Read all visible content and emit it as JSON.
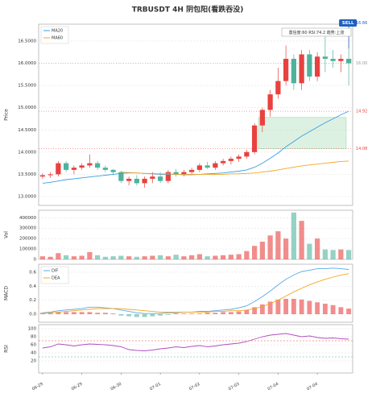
{
  "chart_data": [
    {
      "type": "candlestick",
      "title": "TRBUSDT  4H  阴包阳(看跌吞没)",
      "ylabel": "Price",
      "categories": [
        "06-29",
        null,
        null,
        null,
        null,
        "06-29",
        null,
        null,
        null,
        null,
        "06-30",
        null,
        null,
        null,
        null,
        "07-01",
        null,
        null,
        null,
        null,
        "07-02",
        null,
        null,
        null,
        null,
        "07-03",
        null,
        null,
        null,
        null,
        "07-04",
        null,
        null,
        null,
        null,
        "07-04",
        null,
        null,
        null,
        null
      ],
      "open": [
        13.45,
        13.48,
        13.5,
        13.75,
        13.6,
        13.65,
        13.7,
        13.75,
        13.65,
        13.6,
        13.55,
        13.35,
        13.4,
        13.3,
        13.4,
        13.45,
        13.35,
        13.55,
        13.5,
        13.55,
        13.6,
        13.7,
        13.65,
        13.75,
        13.8,
        13.85,
        13.9,
        14.0,
        14.6,
        14.95,
        15.3,
        15.6,
        16.1,
        15.55,
        16.2,
        15.7,
        16.15,
        16.1,
        16.05,
        16.1
      ],
      "high": [
        13.52,
        13.55,
        13.8,
        13.8,
        13.7,
        13.75,
        13.95,
        13.8,
        13.7,
        13.62,
        13.58,
        13.45,
        13.48,
        13.45,
        13.55,
        13.55,
        13.6,
        13.62,
        13.6,
        13.65,
        13.75,
        13.78,
        13.8,
        13.85,
        13.9,
        13.95,
        14.05,
        14.65,
        15.0,
        15.4,
        15.9,
        16.4,
        16.2,
        16.3,
        16.3,
        16.25,
        16.6,
        16.3,
        16.2,
        16.35
      ],
      "low": [
        13.4,
        13.42,
        13.45,
        13.55,
        13.5,
        13.6,
        13.65,
        13.6,
        13.55,
        13.48,
        13.3,
        13.25,
        13.25,
        13.2,
        13.3,
        13.3,
        13.3,
        13.45,
        13.45,
        13.5,
        13.55,
        13.62,
        13.6,
        13.7,
        13.72,
        13.78,
        13.85,
        13.95,
        14.45,
        14.8,
        15.2,
        15.5,
        15.4,
        15.4,
        15.6,
        15.6,
        15.8,
        15.9,
        15.8,
        15.5
      ],
      "close": [
        13.48,
        13.5,
        13.75,
        13.6,
        13.65,
        13.7,
        13.75,
        13.65,
        13.6,
        13.55,
        13.35,
        13.4,
        13.3,
        13.4,
        13.45,
        13.35,
        13.55,
        13.5,
        13.55,
        13.6,
        13.7,
        13.65,
        13.75,
        13.8,
        13.85,
        13.9,
        14.0,
        14.6,
        14.95,
        15.3,
        15.6,
        16.1,
        15.55,
        16.2,
        15.7,
        16.15,
        16.1,
        16.05,
        16.1,
        16.0
      ],
      "up_color": "#e8413f",
      "down_color": "#4fb39c",
      "series": [
        {
          "name": "MA20",
          "color": "#3b9de0",
          "values": [
            13.3,
            13.32,
            13.35,
            13.38,
            13.4,
            13.42,
            13.44,
            13.46,
            13.48,
            13.5,
            13.52,
            13.53,
            13.53,
            13.52,
            13.51,
            13.5,
            13.5,
            13.5,
            13.49,
            13.49,
            13.5,
            13.51,
            13.52,
            13.53,
            13.55,
            13.57,
            13.6,
            13.66,
            13.75,
            13.86,
            13.98,
            14.12,
            14.24,
            14.36,
            14.46,
            14.56,
            14.66,
            14.75,
            14.84,
            14.92
          ]
        },
        {
          "name": "MA60",
          "color": "#f5a623",
          "values": [
            null,
            null,
            null,
            null,
            null,
            null,
            null,
            null,
            null,
            null,
            13.55,
            13.54,
            13.53,
            13.52,
            13.52,
            13.51,
            13.51,
            13.5,
            13.5,
            13.5,
            13.5,
            13.5,
            13.5,
            13.5,
            13.51,
            13.51,
            13.52,
            13.53,
            13.55,
            13.57,
            13.6,
            13.63,
            13.66,
            13.69,
            13.71,
            13.73,
            13.75,
            13.77,
            13.79,
            13.8
          ]
        }
      ],
      "ylim": [
        12.8,
        16.88
      ],
      "yticks": [
        {
          "value": 13,
          "label": "13.0000"
        },
        {
          "value": 13.5,
          "label": "13.5000"
        },
        {
          "value": 14,
          "label": "14.0000"
        },
        {
          "value": 14.5,
          "label": "14.5000"
        },
        {
          "value": 15,
          "label": "15.0000"
        },
        {
          "value": 15.5,
          "label": "15.5000"
        },
        {
          "value": 16,
          "label": "16.0000"
        },
        {
          "value": 16.5,
          "label": "16.5000"
        }
      ],
      "grid": true,
      "legend": "upper-left",
      "levels": [
        {
          "value": 16,
          "label": "16.00",
          "color": "#999999"
        },
        {
          "value": 14.92,
          "label": "14.92",
          "color": "#e8413f"
        },
        {
          "value": 14.08,
          "label": "14.08",
          "color": "#e8413f"
        }
      ],
      "zone": {
        "low": 14.08,
        "high": 14.78,
        "color": "#8fd19e"
      },
      "signal": {
        "text": "SELL",
        "price": 16.66,
        "color": "#1f5fbf"
      },
      "annotation": "置信度:60  RSI:74.2  趋势:上涨"
    },
    {
      "type": "volume",
      "ylabel": "Vol",
      "values": [
        30000,
        25000,
        60000,
        40000,
        30000,
        35000,
        70000,
        40000,
        25000,
        30000,
        35000,
        30000,
        25000,
        30000,
        35000,
        40000,
        30000,
        45000,
        30000,
        40000,
        50000,
        30000,
        35000,
        40000,
        45000,
        50000,
        80000,
        130000,
        170000,
        230000,
        270000,
        200000,
        450000,
        370000,
        150000,
        200000,
        95000,
        90000,
        95000,
        90000
      ],
      "ylim": [
        0,
        472000
      ],
      "yticks": [
        0,
        100000,
        200000,
        300000,
        400000
      ],
      "grid": true
    },
    {
      "type": "macd",
      "ylabel": "MACD",
      "legend": "upper-left",
      "histogram": [
        0.02,
        0.02,
        0.03,
        0.03,
        0.03,
        0.03,
        0.03,
        0.02,
        0.02,
        0.01,
        -0.02,
        -0.03,
        -0.04,
        -0.04,
        -0.03,
        -0.02,
        -0.01,
        0.01,
        0.01,
        0.01,
        0.01,
        0.02,
        0.02,
        0.03,
        0.03,
        0.04,
        0.06,
        0.1,
        0.14,
        0.18,
        0.21,
        0.22,
        0.22,
        0.21,
        0.19,
        0.17,
        0.15,
        0.13,
        0.1,
        0.08
      ],
      "series": [
        {
          "name": "DIF",
          "color": "#5aa9e6",
          "values": [
            0.02,
            0.03,
            0.05,
            0.06,
            0.07,
            0.08,
            0.1,
            0.1,
            0.09,
            0.08,
            0.06,
            0.04,
            0.02,
            0.01,
            0.01,
            0.01,
            0.02,
            0.02,
            0.03,
            0.03,
            0.04,
            0.04,
            0.05,
            0.06,
            0.07,
            0.09,
            0.12,
            0.18,
            0.25,
            0.33,
            0.42,
            0.5,
            0.56,
            0.61,
            0.63,
            0.65,
            0.65,
            0.66,
            0.65,
            0.64
          ]
        },
        {
          "name": "DEA",
          "color": "#f5a623",
          "values": [
            0.01,
            0.02,
            0.03,
            0.04,
            0.05,
            0.06,
            0.07,
            0.08,
            0.08,
            0.08,
            0.08,
            0.07,
            0.06,
            0.05,
            0.04,
            0.03,
            0.03,
            0.03,
            0.03,
            0.03,
            0.03,
            0.03,
            0.04,
            0.04,
            0.05,
            0.05,
            0.06,
            0.08,
            0.11,
            0.15,
            0.2,
            0.26,
            0.32,
            0.37,
            0.42,
            0.46,
            0.5,
            0.53,
            0.56,
            0.58
          ]
        }
      ],
      "ylim": [
        -0.115,
        0.715
      ],
      "yticks": [
        {
          "value": 0,
          "label": "0.0"
        },
        0.2,
        0.4,
        0.6
      ],
      "grid": true
    },
    {
      "type": "line",
      "ylabel": "RSI",
      "series": [
        {
          "color": "#b04fc0",
          "values": [
            52,
            55,
            62,
            60,
            57,
            60,
            62,
            61,
            60,
            58,
            55,
            48,
            46,
            45,
            47,
            50,
            52,
            55,
            53,
            56,
            58,
            55,
            57,
            60,
            62,
            64,
            68,
            74,
            80,
            84,
            86,
            88,
            84,
            80,
            82,
            78,
            76,
            77,
            75,
            74
          ]
        }
      ],
      "reference_lines": [
        70,
        30
      ],
      "ylim": [
        -10,
        110
      ],
      "yticks": [
        20,
        40,
        60,
        80,
        100
      ],
      "grid": true
    }
  ]
}
